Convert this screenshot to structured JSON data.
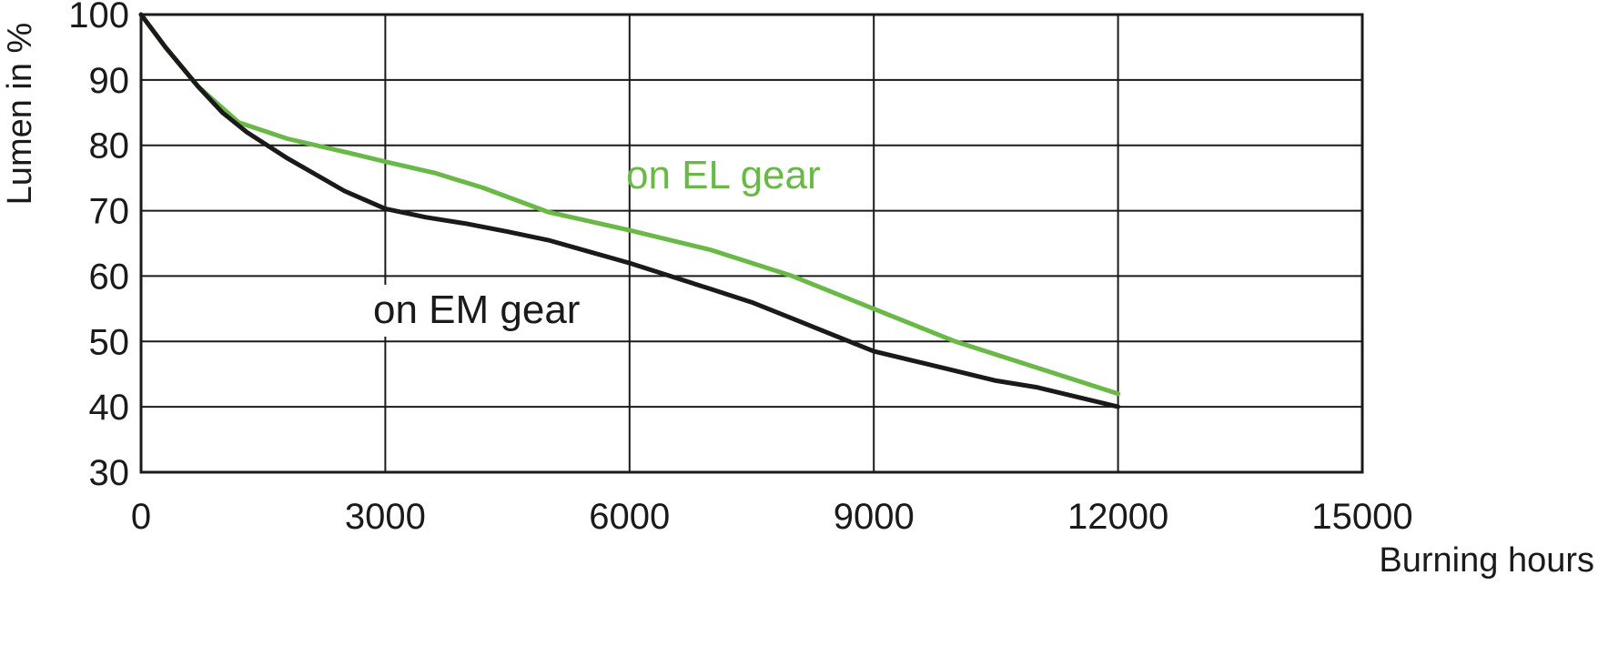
{
  "chart_data": {
    "type": "line",
    "xlabel": "Burning hours",
    "ylabel": "Lumen in %",
    "xlim": [
      0,
      15000
    ],
    "ylim": [
      30,
      100
    ],
    "x_ticks": [
      0,
      3000,
      6000,
      9000,
      12000,
      15000
    ],
    "y_ticks": [
      30,
      40,
      50,
      60,
      70,
      80,
      90,
      100
    ],
    "grid": true,
    "series": [
      {
        "name": "on EL gear",
        "color": "#6ab847",
        "x": [
          0,
          300,
          700,
          1200,
          1800,
          2500,
          3000,
          3600,
          4200,
          5000,
          6000,
          7000,
          8000,
          9000,
          10000,
          11000,
          12000
        ],
        "values": [
          100,
          95,
          89,
          83.5,
          81,
          79,
          77.5,
          75.8,
          73.5,
          69.8,
          67,
          64,
          60,
          55,
          50,
          46,
          42
        ]
      },
      {
        "name": "on EM gear",
        "color": "#1a1a1a",
        "x": [
          0,
          300,
          700,
          1000,
          1300,
          1800,
          2500,
          3000,
          3500,
          4000,
          4500,
          5000,
          6000,
          7000,
          7500,
          8000,
          9000,
          9500,
          10000,
          10500,
          11000,
          12000
        ],
        "values": [
          100,
          95,
          89,
          85,
          82,
          78,
          73,
          70.3,
          69,
          68,
          66.8,
          65.5,
          62,
          58,
          56,
          53.5,
          48.5,
          47,
          45.5,
          44,
          43,
          40
        ]
      }
    ]
  }
}
